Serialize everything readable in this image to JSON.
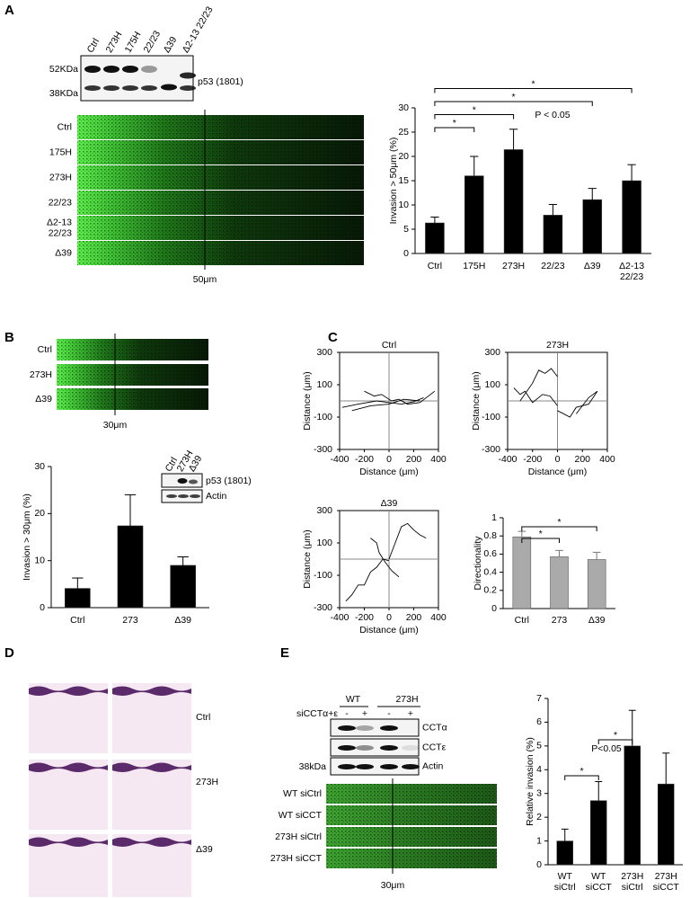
{
  "chart_data": [
    {
      "type": "bar",
      "ylabel": "Invasion > 50μm (%)",
      "color": "#000000",
      "categories": [
        "Ctrl",
        "175H",
        "273H",
        "22/23",
        "Δ39",
        [
          "Δ2-13",
          "22/23"
        ]
      ],
      "values": [
        6.3,
        16,
        21.4,
        7.9,
        11.1,
        15
      ],
      "errors": [
        1.2,
        4,
        4.2,
        2.2,
        2.3,
        3.3
      ],
      "ylim": [
        0,
        30
      ],
      "yticks": [
        0,
        5,
        10,
        15,
        20,
        25,
        30
      ],
      "comparisons": [
        {
          "pair": [
            0,
            1
          ],
          "label": "*"
        },
        {
          "pair": [
            0,
            2
          ],
          "label": "*"
        },
        {
          "pair": [
            0,
            4
          ],
          "label": "*"
        },
        {
          "pair": [
            0,
            5
          ],
          "label": "*"
        }
      ],
      "annotation": "P < 0.05"
    },
    {
      "type": "bar",
      "ylabel": "Invasion > 30μm (%)",
      "color": "#000000",
      "categories": [
        "Ctrl",
        "273",
        "Δ39"
      ],
      "values": [
        4.1,
        17.4,
        9
      ],
      "errors": [
        2.2,
        6.6,
        1.8
      ],
      "ylim": [
        0,
        30
      ],
      "yticks": [
        0,
        10,
        20,
        30
      ]
    },
    {
      "type": "line",
      "title": "Ctrl",
      "xlabel": "Distance (μm)",
      "ylabel": "Distance (μm)",
      "xlim": [
        -400,
        400
      ],
      "ylim": [
        -300,
        300
      ],
      "xticks": [
        -400,
        -200,
        0,
        200,
        400
      ],
      "yticks": [
        -300,
        -100,
        100,
        300
      ],
      "series": [
        {
          "color": "#000000",
          "x": [
            -380,
            -250,
            -100,
            0,
            100,
            200,
            280
          ],
          "values": [
            -40,
            -20,
            0,
            -10,
            -20,
            -5,
            20
          ]
        },
        {
          "color": "#000000",
          "x": [
            -200,
            -120,
            -60,
            20,
            80,
            150,
            250,
            370
          ],
          "values": [
            60,
            30,
            40,
            0,
            10,
            -20,
            -10,
            60
          ]
        },
        {
          "color": "#000000",
          "x": [
            -300,
            -150,
            0,
            120,
            250
          ],
          "values": [
            -60,
            -30,
            -20,
            10,
            0
          ]
        }
      ]
    },
    {
      "type": "line",
      "title": "273H",
      "xlabel": "Distance (μm)",
      "ylabel": "Distance (μm)",
      "xlim": [
        -400,
        400
      ],
      "ylim": [
        -300,
        300
      ],
      "xticks": [
        -400,
        -200,
        0,
        200,
        400
      ],
      "yticks": [
        -300,
        -100,
        100,
        300
      ],
      "series": [
        {
          "color": "#000000",
          "x": [
            -350,
            -300,
            -260,
            -200,
            -120,
            -60,
            0
          ],
          "values": [
            80,
            40,
            60,
            -10,
            40,
            30,
            -30
          ]
        },
        {
          "color": "#000000",
          "x": [
            -300,
            -200,
            -150,
            -100,
            -50,
            0
          ],
          "values": [
            0,
            110,
            190,
            170,
            200,
            150
          ]
        },
        {
          "color": "#000000",
          "x": [
            0,
            100,
            150,
            250,
            320,
            250,
            150
          ],
          "values": [
            -60,
            -100,
            -40,
            -20,
            60,
            20,
            -80
          ]
        }
      ]
    },
    {
      "type": "line",
      "title": "Δ39",
      "xlabel": "Distance (μm)",
      "ylabel": "Distance (μm)",
      "xlim": [
        -400,
        400
      ],
      "ylim": [
        -300,
        300
      ],
      "xticks": [
        -400,
        -200,
        0,
        200,
        400
      ],
      "yticks": [
        -300,
        -100,
        100,
        300
      ],
      "series": [
        {
          "color": "#000000",
          "x": [
            -350,
            -300,
            -250,
            -200,
            -150,
            -100,
            -50,
            0
          ],
          "values": [
            -260,
            -220,
            -160,
            -160,
            -80,
            -50,
            0,
            -10
          ]
        },
        {
          "color": "#000000",
          "x": [
            0,
            50,
            100,
            150,
            200,
            250,
            300
          ],
          "values": [
            0,
            100,
            200,
            220,
            180,
            150,
            130
          ]
        },
        {
          "color": "#000000",
          "x": [
            -150,
            -100,
            -80,
            -30,
            20,
            80
          ],
          "values": [
            130,
            100,
            40,
            -20,
            -70,
            -110
          ]
        }
      ]
    },
    {
      "type": "bar",
      "ylabel": "Directionality",
      "color": "#aaaaaa",
      "categories": [
        "Ctrl",
        "273",
        "Δ39"
      ],
      "values": [
        0.79,
        0.57,
        0.54
      ],
      "errors": [
        0.06,
        0.07,
        0.08
      ],
      "ylim": [
        0,
        1
      ],
      "yticks": [
        0,
        0.2,
        0.4,
        0.6,
        0.8,
        1
      ],
      "comparisons": [
        {
          "pair": [
            0,
            1
          ],
          "label": "*"
        },
        {
          "pair": [
            0,
            2
          ],
          "label": "*"
        }
      ]
    },
    {
      "type": "bar",
      "ylabel": "Relative invasion (%)",
      "color": "#000000",
      "categories": [
        [
          "WT",
          "siCtrl"
        ],
        [
          "WT",
          "siCCT"
        ],
        [
          "273H",
          "siCtrl"
        ],
        [
          "273H",
          "siCCT"
        ]
      ],
      "values": [
        1,
        2.7,
        5,
        3.4
      ],
      "errors": [
        0.5,
        0.8,
        1.5,
        1.3
      ],
      "ylim": [
        0,
        7
      ],
      "yticks": [
        0,
        1,
        2,
        3,
        4,
        5,
        6,
        7
      ],
      "comparisons": [
        {
          "pair": [
            0,
            1
          ],
          "label": "*"
        },
        {
          "pair": [
            1,
            2
          ],
          "label": "*"
        }
      ],
      "annotation": "P<0.05"
    }
  ],
  "panels": {
    "letters": [
      "A",
      "B",
      "C",
      "D",
      "E"
    ],
    "a_blot": {
      "lanes": [
        "Ctrl",
        "273H",
        "175H",
        "22/23",
        "Δ39",
        "Δ2-13 22/23"
      ],
      "markers": [
        "52KDa",
        "38KDa"
      ],
      "band": "p53 (1801)"
    },
    "a_strips": {
      "rows": [
        "Ctrl",
        "175H",
        "273H",
        "22/23",
        [
          "Δ2-13",
          "22/23"
        ],
        "Δ39"
      ],
      "scale": "50μm"
    },
    "b_strips": {
      "rows": [
        "Ctrl",
        "273H",
        "Δ39"
      ],
      "scale": "30μm"
    },
    "b_blot": {
      "lanes": [
        "Ctrl",
        "273H",
        "Δ39"
      ],
      "bands": [
        "p53 (1801)",
        "Actin"
      ]
    },
    "d_images": {
      "rows": [
        "Ctrl",
        "273H",
        "Δ39"
      ]
    },
    "e_blot": {
      "groups": [
        "WT",
        "273H"
      ],
      "treatment": "siCCTα+ε",
      "signs": [
        "-",
        "+",
        "-",
        "+"
      ],
      "bands": [
        "CCTα",
        "CCTε",
        "Actin"
      ],
      "marker": "38kDa"
    },
    "e_strips": {
      "rows": [
        "WT siCtrl",
        "WT siCCT",
        "273H siCtrl",
        "273H siCCT"
      ],
      "scale": "30μm"
    }
  }
}
